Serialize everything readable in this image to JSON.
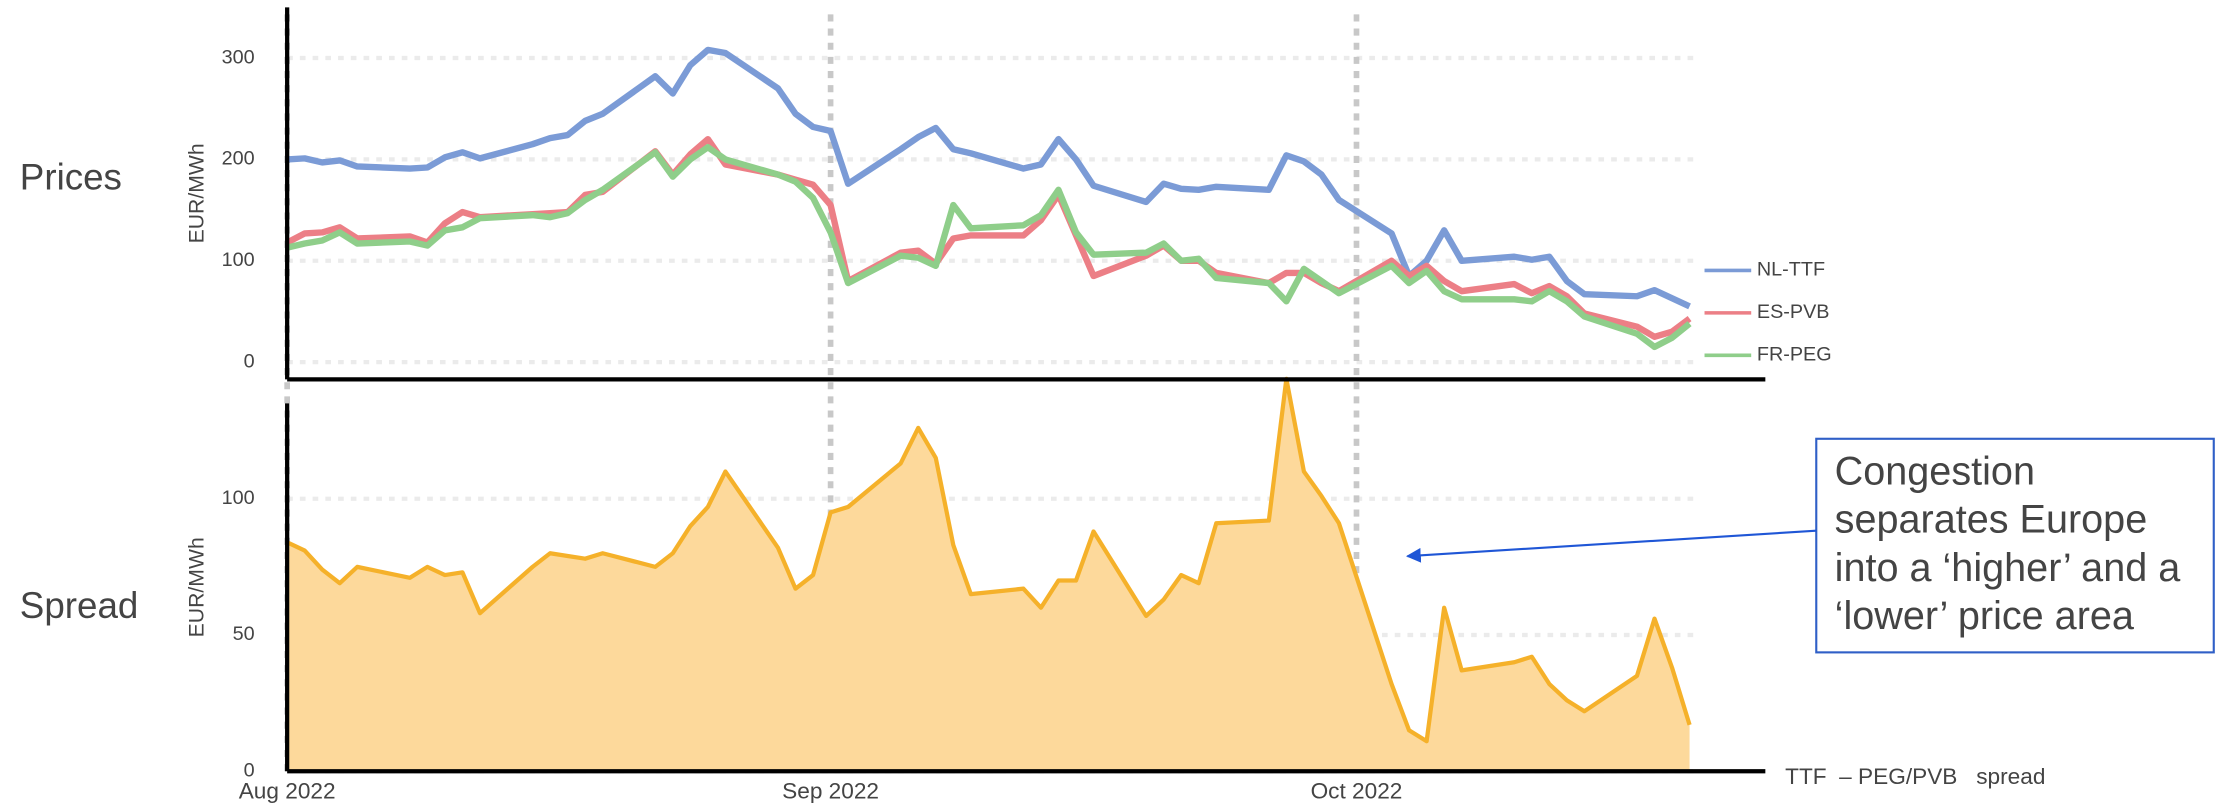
{
  "chart_data": [
    {
      "type": "line",
      "label": "Prices",
      "ylabel": "EUR/MWh",
      "x": [
        0,
        1,
        2,
        3,
        4,
        7,
        8,
        9,
        10,
        11,
        14,
        15,
        16,
        17,
        18,
        21,
        22,
        23,
        24,
        25,
        28,
        29,
        30,
        31,
        32,
        35,
        36,
        37,
        38,
        39,
        42,
        43,
        44,
        45,
        46,
        49,
        50,
        51,
        52,
        53,
        56,
        57,
        58,
        59,
        60,
        63,
        64,
        65,
        66,
        67,
        70,
        71,
        72,
        73,
        74,
        77,
        78,
        79,
        80
      ],
      "xlim": [
        0,
        84
      ],
      "ylim": [
        -17,
        350
      ],
      "yticks": [
        0,
        100,
        200,
        300
      ],
      "grid": true,
      "series": [
        {
          "name": "NL-TTF",
          "color": "#7b9bd6",
          "values": [
            200,
            201,
            197,
            199,
            193,
            191,
            192,
            202,
            207,
            201,
            215,
            221,
            224,
            238,
            245,
            282,
            265,
            293,
            308,
            305,
            270,
            245,
            232,
            228,
            176,
            210,
            222,
            231,
            210,
            206,
            191,
            195,
            220,
            200,
            174,
            158,
            176,
            171,
            170,
            173,
            170,
            204,
            198,
            185,
            160,
            127,
            85,
            100,
            130,
            100,
            104,
            101,
            104,
            80,
            67,
            65,
            71,
            63,
            55
          ]
        },
        {
          "name": "ES-PVB",
          "color": "#ec7f86",
          "values": [
            118,
            127,
            128,
            133,
            122,
            124,
            118,
            137,
            148,
            143,
            146,
            147,
            148,
            165,
            168,
            208,
            185,
            205,
            220,
            195,
            185,
            180,
            175,
            155,
            80,
            108,
            110,
            97,
            122,
            125,
            125,
            140,
            165,
            125,
            85,
            105,
            115,
            100,
            100,
            88,
            78,
            88,
            88,
            78,
            70,
            100,
            85,
            95,
            80,
            70,
            77,
            68,
            75,
            65,
            48,
            35,
            25,
            30,
            43
          ]
        },
        {
          "name": "FR-PEG",
          "color": "#8fce8a",
          "values": [
            113,
            117,
            120,
            128,
            117,
            119,
            115,
            130,
            133,
            142,
            145,
            143,
            147,
            160,
            170,
            207,
            183,
            200,
            212,
            200,
            185,
            178,
            162,
            128,
            78,
            105,
            103,
            95,
            155,
            132,
            135,
            145,
            170,
            128,
            106,
            108,
            117,
            100,
            102,
            83,
            78,
            60,
            92,
            80,
            68,
            95,
            78,
            90,
            70,
            62,
            62,
            60,
            70,
            60,
            45,
            28,
            15,
            24,
            38
          ]
        }
      ]
    },
    {
      "type": "area",
      "label": "Spread",
      "ylabel": "EUR/MWh",
      "x": [
        0,
        1,
        2,
        3,
        4,
        7,
        8,
        9,
        10,
        11,
        14,
        15,
        16,
        17,
        18,
        21,
        22,
        23,
        24,
        25,
        28,
        29,
        30,
        31,
        32,
        35,
        36,
        37,
        38,
        39,
        42,
        43,
        44,
        45,
        46,
        49,
        50,
        51,
        52,
        53,
        56,
        57,
        58,
        59,
        60,
        63,
        64,
        65,
        66,
        67,
        70,
        71,
        72,
        73,
        74,
        77,
        78,
        79,
        80
      ],
      "xlim": [
        0,
        84
      ],
      "xticks": [
        {
          "value": 0,
          "label": "Aug 2022"
        },
        {
          "value": 31,
          "label": "Sep 2022"
        },
        {
          "value": 61,
          "label": "Oct 2022"
        }
      ],
      "ylim": [
        0,
        135
      ],
      "yticks": [
        0,
        50,
        100
      ],
      "grid": true,
      "series": [
        {
          "name": "TTF  – PEG/PVB   spread",
          "color": "#f5b12a",
          "fill": "#fdd99b",
          "values": [
            84,
            81,
            74,
            69,
            75,
            71,
            75,
            72,
            73,
            58,
            75,
            80,
            79,
            78,
            80,
            75,
            80,
            90,
            97,
            110,
            82,
            67,
            72,
            95,
            97,
            113,
            126,
            115,
            83,
            65,
            67,
            60,
            70,
            70,
            88,
            57,
            63,
            72,
            69,
            91,
            92,
            144,
            110,
            101,
            91,
            32,
            15,
            11,
            60,
            37,
            40,
            42,
            32,
            26,
            22,
            35,
            56,
            38,
            17
          ]
        }
      ],
      "annotation": [
        "Congestion",
        "separates Europe",
        "into a ‘higher’ and a",
        "‘lower’ price area"
      ]
    }
  ]
}
